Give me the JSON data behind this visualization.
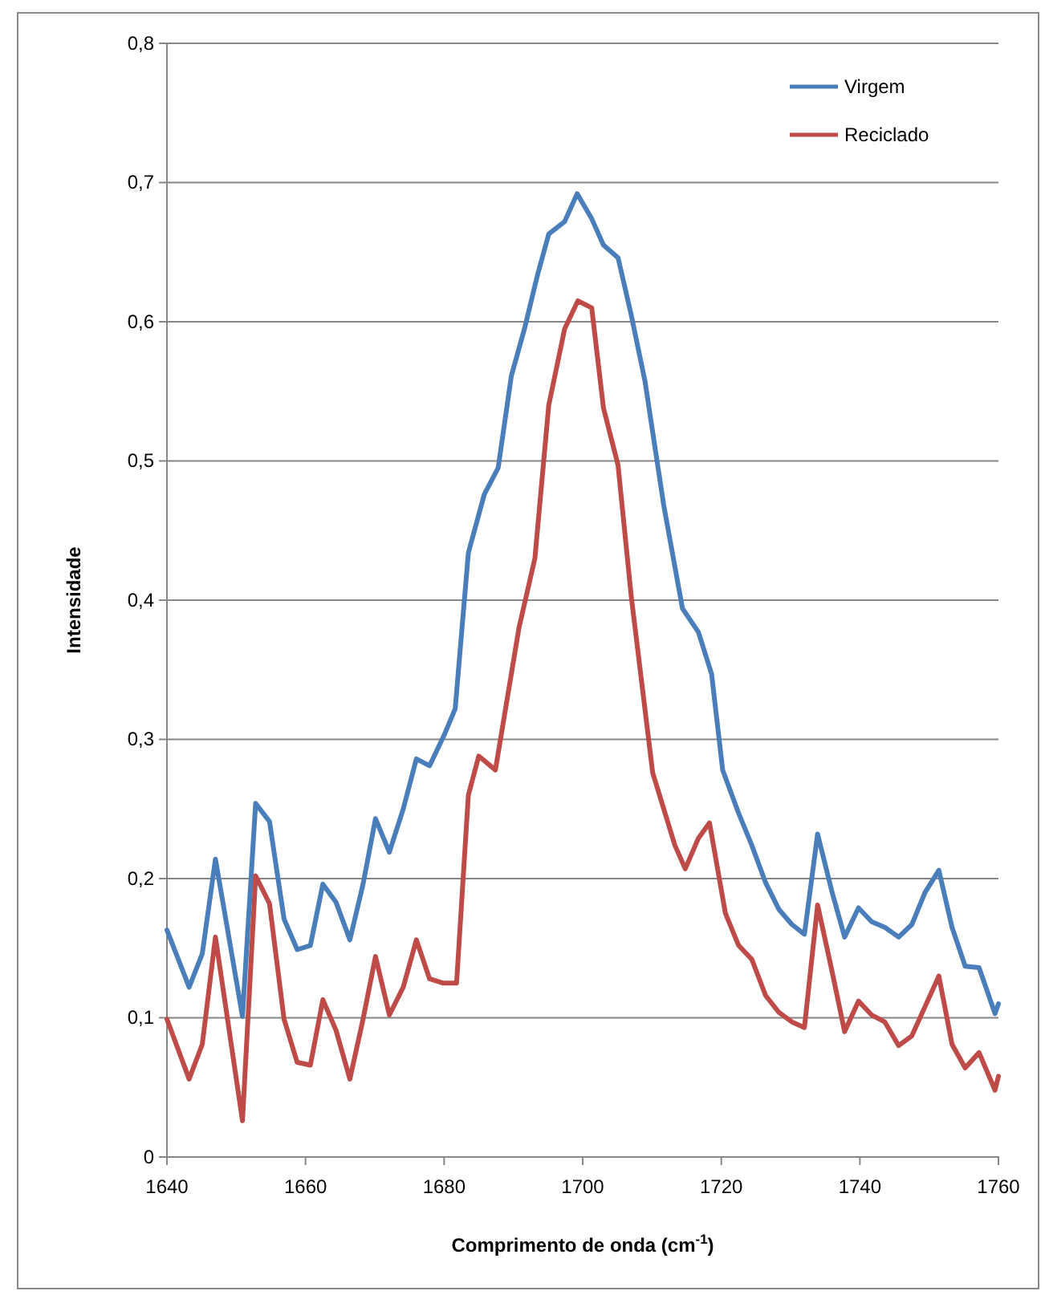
{
  "chart_data": {
    "type": "line",
    "xlabel": "Comprimento de onda (cm$^{-1}$)",
    "ylabel": "Intensidade",
    "xlim": [
      1640,
      1760
    ],
    "xticks": [
      1640,
      1660,
      1680,
      1700,
      1720,
      1740,
      1760
    ],
    "ylim": [
      0,
      0.8
    ],
    "yticks": [
      0,
      {
        "value": 0.1,
        "label": "0,1"
      },
      {
        "value": 0.2,
        "label": "0,2"
      },
      {
        "value": 0.3,
        "label": "0,3"
      },
      {
        "value": 0.4,
        "label": "0,4"
      },
      {
        "value": 0.5,
        "label": "0,5"
      },
      {
        "value": 0.6,
        "label": "0,6"
      },
      {
        "value": 0.7,
        "label": "0,7"
      },
      {
        "value": 0.8,
        "label": "0,8"
      }
    ],
    "grid": "y",
    "legend": "top right",
    "marker": "none",
    "line_style": "solid",
    "series": [
      {
        "name": "Virgem",
        "color": "#4a7ebb",
        "x": [
          1640,
          1643.2,
          1645.1,
          1647,
          1650.9,
          1652.8,
          1654.8,
          1656.9,
          1658.8,
          1660.7,
          1662.5,
          1664.4,
          1666.4,
          1668.3,
          1670.1,
          1672.1,
          1674.1,
          1676,
          1677.9,
          1680,
          1681.6,
          1683.5,
          1685.8,
          1687.8,
          1689.7,
          1691.6,
          1693.5,
          1695.1,
          1697.4,
          1699.2,
          1701.3,
          1703,
          1705.1,
          1707,
          1709,
          1711.7,
          1714.4,
          1716.7,
          1718.6,
          1720.2,
          1722.5,
          1724.4,
          1726.4,
          1728.3,
          1730.2,
          1732,
          1733.9,
          1736,
          1737.8,
          1739.8,
          1741.7,
          1743.6,
          1745.6,
          1747.5,
          1749.4,
          1751.4,
          1753.3,
          1755.2,
          1757.2,
          1759.5,
          1760
        ],
        "values": [
          0.163,
          0.122,
          0.146,
          0.214,
          0.101,
          0.254,
          0.241,
          0.171,
          0.149,
          0.152,
          0.196,
          0.183,
          0.156,
          0.196,
          0.243,
          0.219,
          0.25,
          0.286,
          0.281,
          0.303,
          0.322,
          0.434,
          0.476,
          0.495,
          0.561,
          0.595,
          0.634,
          0.663,
          0.672,
          0.692,
          0.674,
          0.655,
          0.646,
          0.605,
          0.557,
          0.468,
          0.394,
          0.377,
          0.347,
          0.278,
          0.247,
          0.224,
          0.197,
          0.178,
          0.167,
          0.16,
          0.232,
          0.19,
          0.158,
          0.179,
          0.169,
          0.165,
          0.158,
          0.167,
          0.19,
          0.206,
          0.165,
          0.137,
          0.136,
          0.103,
          0.11
        ]
      },
      {
        "name": "Reciclado",
        "color": "#be4b48",
        "x": [
          1640,
          1643.2,
          1645.1,
          1647,
          1650.9,
          1652.8,
          1654.8,
          1656.9,
          1658.8,
          1660.7,
          1662.5,
          1664.4,
          1666.4,
          1668.3,
          1670.1,
          1672.1,
          1674.1,
          1676,
          1677.9,
          1679.8,
          1681.8,
          1683.5,
          1685,
          1687.4,
          1690.8,
          1693.1,
          1695.1,
          1697.4,
          1699.3,
          1701.3,
          1703,
          1705.1,
          1707,
          1710.1,
          1713.3,
          1714.8,
          1716.7,
          1718.3,
          1720.6,
          1722.5,
          1724.4,
          1726.4,
          1728.3,
          1730.2,
          1732,
          1733.9,
          1736,
          1737.8,
          1739.8,
          1741.7,
          1743.6,
          1745.6,
          1747.5,
          1749.4,
          1751.4,
          1753.3,
          1755.2,
          1757.2,
          1759.5,
          1760
        ],
        "values": [
          0.099,
          0.056,
          0.081,
          0.158,
          0.026,
          0.202,
          0.182,
          0.099,
          0.068,
          0.066,
          0.113,
          0.091,
          0.056,
          0.099,
          0.144,
          0.102,
          0.122,
          0.156,
          0.128,
          0.125,
          0.125,
          0.26,
          0.288,
          0.278,
          0.38,
          0.43,
          0.54,
          0.595,
          0.615,
          0.61,
          0.538,
          0.497,
          0.403,
          0.276,
          0.224,
          0.207,
          0.229,
          0.24,
          0.175,
          0.152,
          0.142,
          0.116,
          0.104,
          0.097,
          0.093,
          0.181,
          0.133,
          0.09,
          0.112,
          0.102,
          0.097,
          0.08,
          0.087,
          0.108,
          0.13,
          0.081,
          0.064,
          0.075,
          0.048,
          0.058
        ]
      }
    ]
  }
}
